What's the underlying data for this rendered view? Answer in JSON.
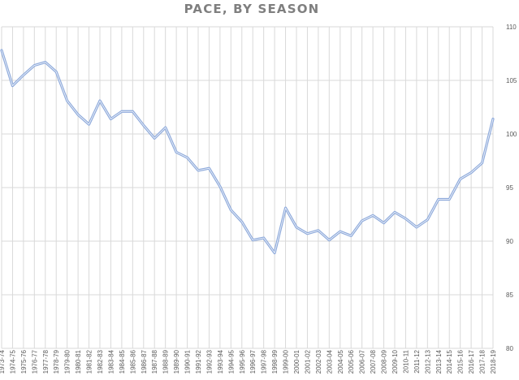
{
  "chart_data": {
    "type": "line",
    "title": "PACE, BY SEASON",
    "xlabel": "",
    "ylabel": "",
    "ylim": [
      80,
      110
    ],
    "yticks": [
      80,
      85,
      90,
      95,
      100,
      105,
      110
    ],
    "grid": "vertical and horizontal",
    "legend": "none",
    "line_color": "#8eaadb",
    "categories": [
      "1973-74",
      "1974-75",
      "1975-76",
      "1976-77",
      "1977-78",
      "1978-79",
      "1979-80",
      "1980-81",
      "1981-82",
      "1982-83",
      "1983-84",
      "1984-85",
      "1985-86",
      "1986-87",
      "1987-88",
      "1988-89",
      "1989-90",
      "1990-91",
      "1991-92",
      "1992-93",
      "1993-94",
      "1994-95",
      "1995-96",
      "1996-97",
      "1997-98",
      "1998-99",
      "1999-00",
      "2000-01",
      "2001-02",
      "2002-03",
      "2003-04",
      "2004-05",
      "2005-06",
      "2006-07",
      "2007-08",
      "2008-09",
      "2009-10",
      "2010-11",
      "2011-12",
      "2012-13",
      "2013-14",
      "2014-15",
      "2015-16",
      "2016-17",
      "2017-18",
      "2018-19"
    ],
    "series": [
      {
        "name": "Pace",
        "values": [
          107.8,
          104.5,
          105.5,
          106.4,
          106.7,
          105.8,
          103.1,
          101.8,
          100.9,
          103.1,
          101.4,
          102.1,
          102.1,
          100.8,
          99.6,
          100.6,
          98.3,
          97.8,
          96.6,
          96.8,
          95.1,
          92.9,
          91.8,
          90.1,
          90.3,
          88.9,
          93.1,
          91.3,
          90.7,
          91.0,
          90.1,
          90.9,
          90.5,
          91.9,
          92.4,
          91.7,
          92.7,
          92.1,
          91.3,
          92.0,
          93.9,
          93.9,
          95.8,
          96.4,
          97.3,
          101.4
        ]
      }
    ]
  }
}
